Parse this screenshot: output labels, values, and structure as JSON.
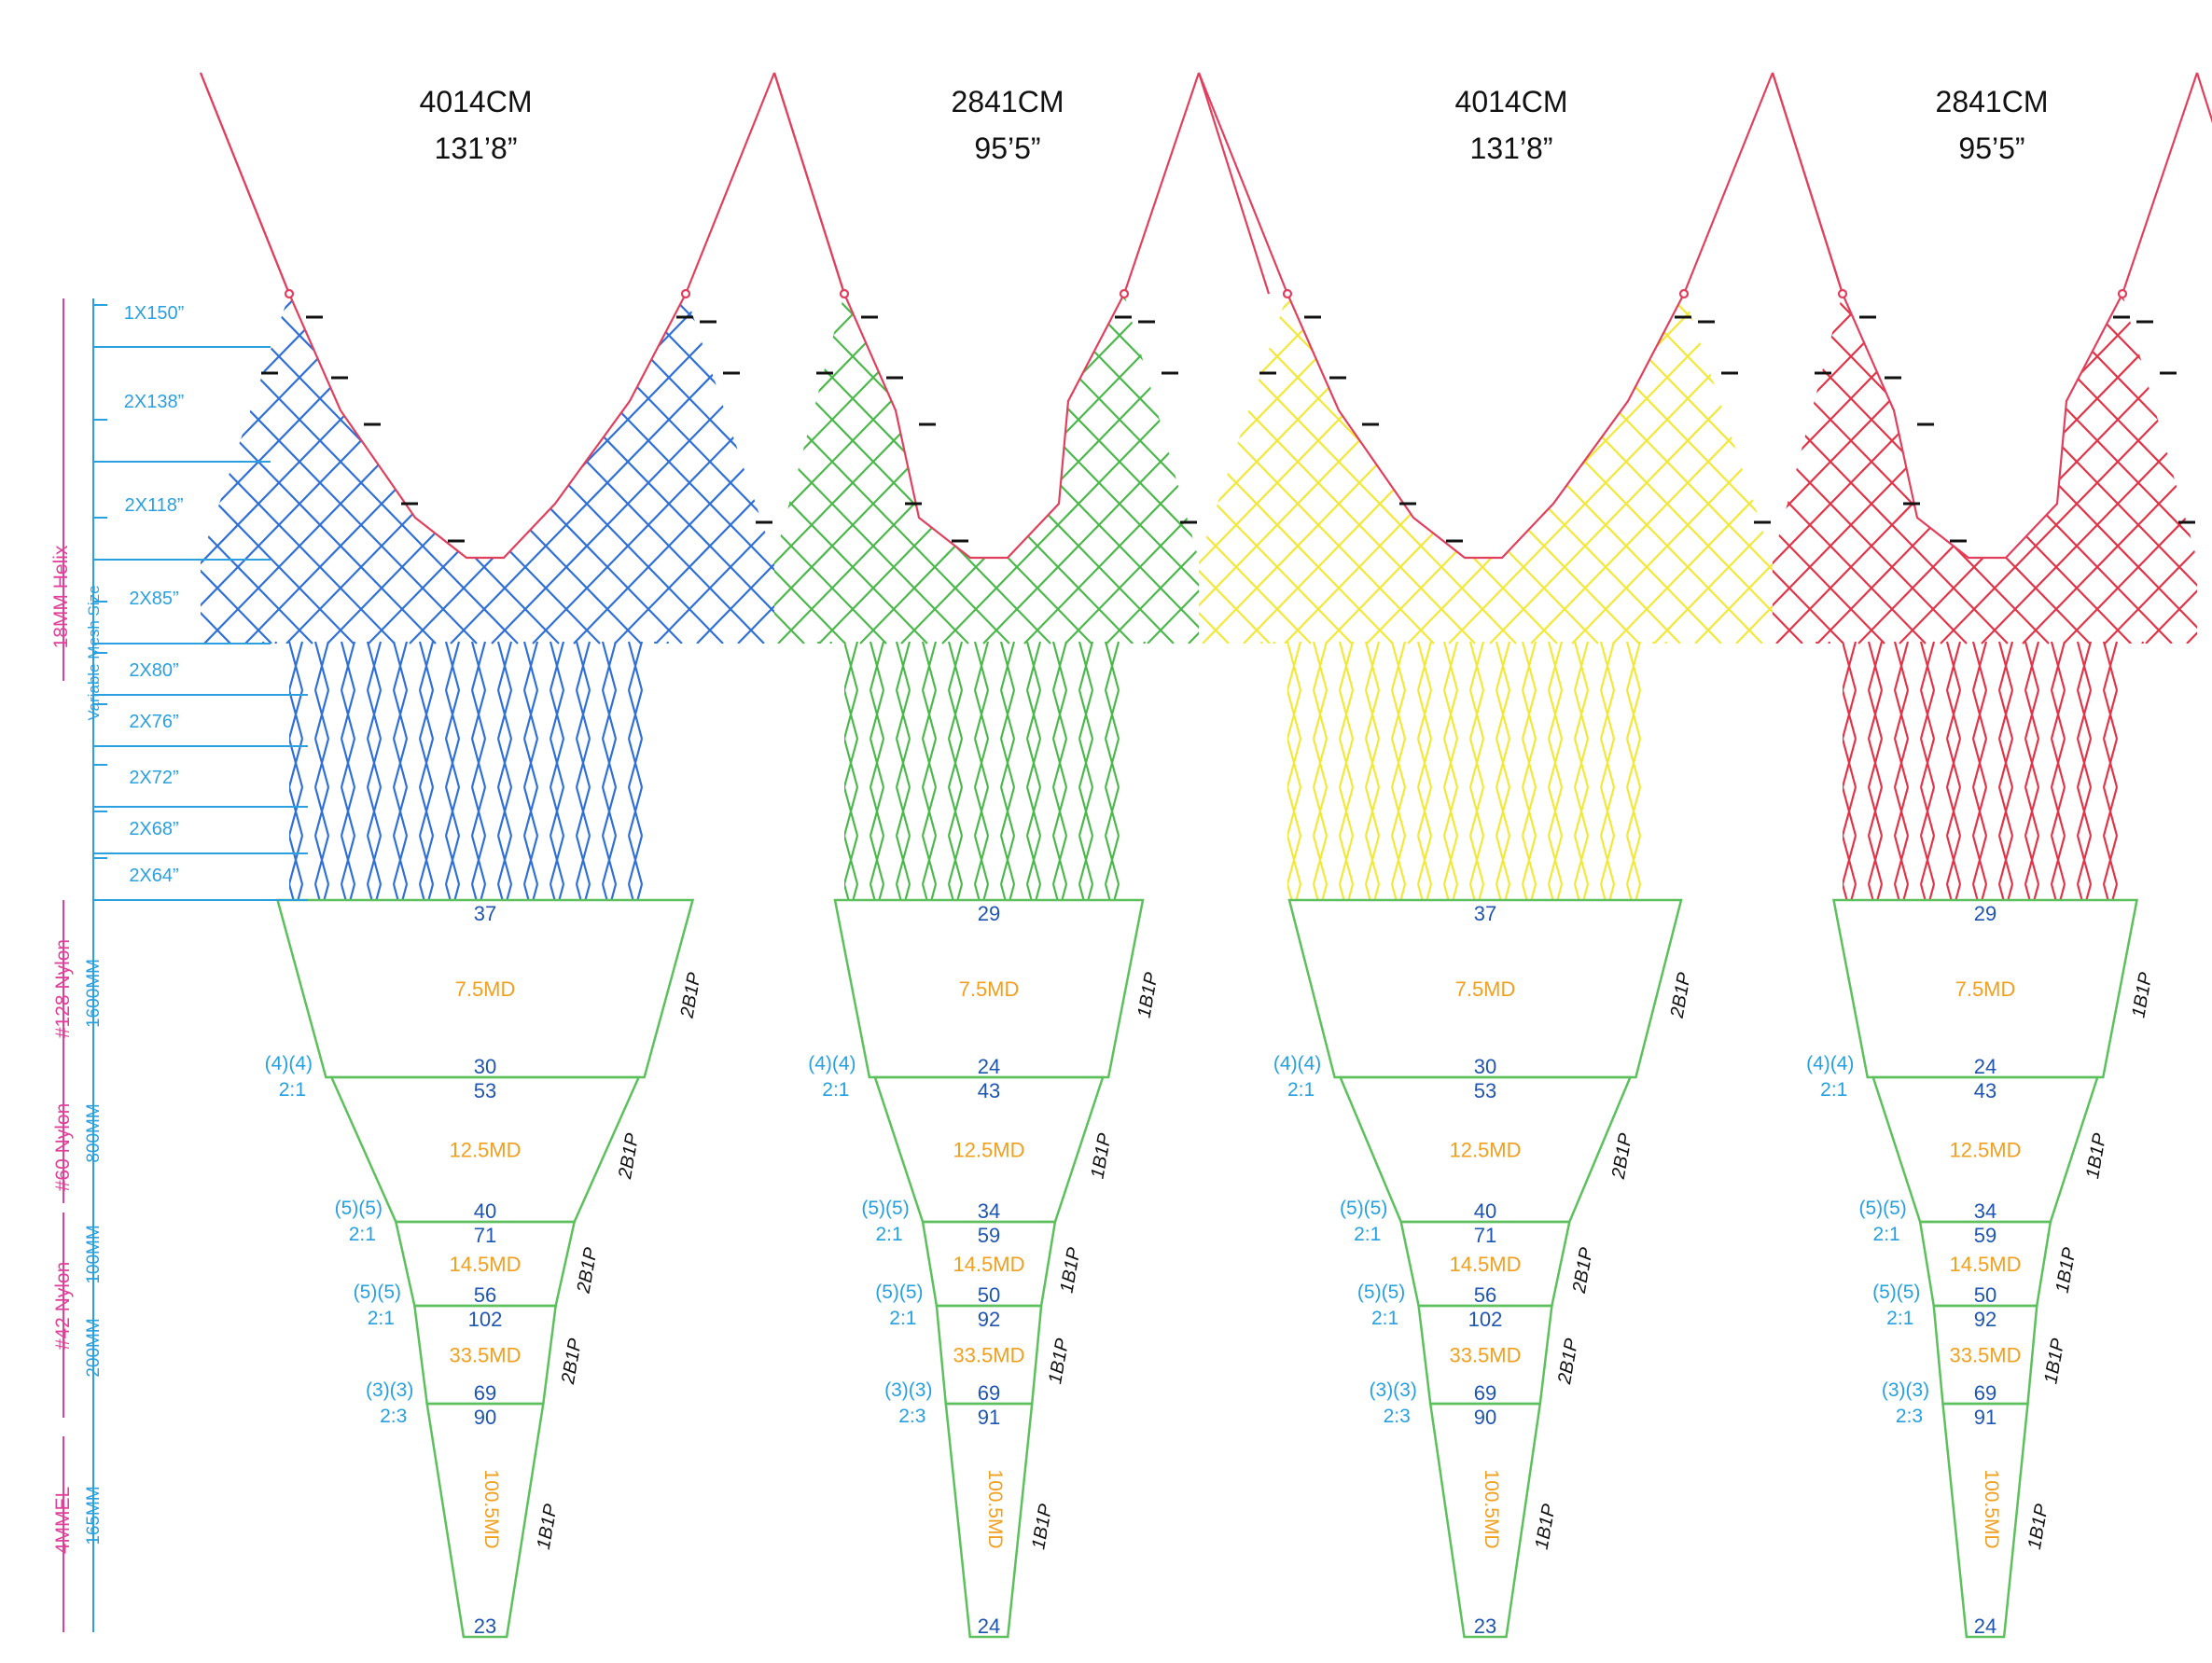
{
  "colors": {
    "outline": "#e0405e",
    "blue_net": "#2f6fd6",
    "green_net": "#4cb84c",
    "yellow_net": "#f2e83a",
    "red_net": "#e03448",
    "trap_stroke": "#5cc05c",
    "number_text": "#1f55b0",
    "ratio_text": "#26a0e0",
    "md_text": "#f0a020",
    "ply_text": "#111111",
    "left_label": "#e0409a",
    "left_scale": "#2aa0e0",
    "header_text": "#111111"
  },
  "left_labels": {
    "helix": "18MM Helix",
    "variable": "Variable Mesh Size",
    "nylon128": "#128 Nylon",
    "mm1600": "1600MM",
    "nylon60": "#60 Nylon",
    "mm800": "800MM",
    "mm100": "100MM",
    "nylon42": "#42 Nylon",
    "mm200": "200MM",
    "mmel": "4MMEL",
    "mm165": "165MM"
  },
  "mesh_rows": [
    "1X150”",
    "2X138”",
    "2X118”",
    "2X85”",
    "2X80”",
    "2X76”",
    "2X72”",
    "2X68”",
    "2X64”"
  ],
  "panels": [
    {
      "header_cm": "4014CM",
      "header_ft": "131’8”",
      "net": "blue",
      "sections": [
        {
          "top": "37",
          "bottom": "30",
          "md": "7.5MD",
          "ply": "2B1P",
          "ratio_a": "(4)(4)",
          "ratio_b": "2:1"
        },
        {
          "top": "53",
          "bottom": "40",
          "md": "12.5MD",
          "ply": "2B1P",
          "ratio_a": "(5)(5)",
          "ratio_b": "2:1"
        },
        {
          "top": "71",
          "bottom": "56",
          "md": "14.5MD",
          "ply": "2B1P",
          "ratio_a": "(5)(5)",
          "ratio_b": "2:1"
        },
        {
          "top": "102",
          "bottom": "69",
          "md": "33.5MD",
          "ply": "2B1P",
          "ratio_a": "(3)(3)",
          "ratio_b": "2:3"
        },
        {
          "top": "90",
          "bottom": "23",
          "md": "100.5MD",
          "ply": "1B1P"
        }
      ]
    },
    {
      "header_cm": "2841CM",
      "header_ft": "95’5”",
      "net": "green",
      "sections": [
        {
          "top": "29",
          "bottom": "24",
          "md": "7.5MD",
          "ply": "1B1P",
          "ratio_a": "(4)(4)",
          "ratio_b": "2:1"
        },
        {
          "top": "43",
          "bottom": "34",
          "md": "12.5MD",
          "ply": "1B1P",
          "ratio_a": "(5)(5)",
          "ratio_b": "2:1"
        },
        {
          "top": "59",
          "bottom": "50",
          "md": "14.5MD",
          "ply": "1B1P",
          "ratio_a": "(5)(5)",
          "ratio_b": "2:1"
        },
        {
          "top": "92",
          "bottom": "69",
          "md": "33.5MD",
          "ply": "1B1P",
          "ratio_a": "(3)(3)",
          "ratio_b": "2:3"
        },
        {
          "top": "91",
          "bottom": "24",
          "md": "100.5MD",
          "ply": "1B1P"
        }
      ]
    },
    {
      "header_cm": "4014CM",
      "header_ft": "131’8”",
      "net": "yellow",
      "sections": [
        {
          "top": "37",
          "bottom": "30",
          "md": "7.5MD",
          "ply": "2B1P",
          "ratio_a": "(4)(4)",
          "ratio_b": "2:1"
        },
        {
          "top": "53",
          "bottom": "40",
          "md": "12.5MD",
          "ply": "2B1P",
          "ratio_a": "(5)(5)",
          "ratio_b": "2:1"
        },
        {
          "top": "71",
          "bottom": "56",
          "md": "14.5MD",
          "ply": "2B1P",
          "ratio_a": "(5)(5)",
          "ratio_b": "2:1"
        },
        {
          "top": "102",
          "bottom": "69",
          "md": "33.5MD",
          "ply": "2B1P",
          "ratio_a": "(3)(3)",
          "ratio_b": "2:3"
        },
        {
          "top": "90",
          "bottom": "23",
          "md": "100.5MD",
          "ply": "1B1P"
        }
      ]
    },
    {
      "header_cm": "2841CM",
      "header_ft": "95’5”",
      "net": "red",
      "sections": [
        {
          "top": "29",
          "bottom": "24",
          "md": "7.5MD",
          "ply": "1B1P",
          "ratio_a": "(4)(4)",
          "ratio_b": "2:1"
        },
        {
          "top": "43",
          "bottom": "34",
          "md": "12.5MD",
          "ply": "1B1P",
          "ratio_a": "(5)(5)",
          "ratio_b": "2:1"
        },
        {
          "top": "59",
          "bottom": "50",
          "md": "14.5MD",
          "ply": "1B1P",
          "ratio_a": "(5)(5)",
          "ratio_b": "2:1"
        },
        {
          "top": "92",
          "bottom": "69",
          "md": "33.5MD",
          "ply": "1B1P",
          "ratio_a": "(3)(3)",
          "ratio_b": "2:3"
        },
        {
          "top": "91",
          "bottom": "24",
          "md": "100.5MD",
          "ply": "1B1P"
        }
      ]
    }
  ]
}
